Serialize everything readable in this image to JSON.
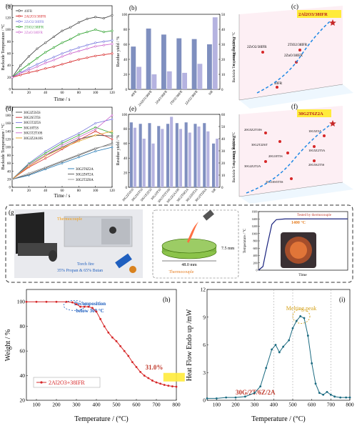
{
  "chart_data": [
    {
      "panel": "(a)",
      "type": "line",
      "xlabel": "Time / s",
      "ylabel": "Backside Temperature / °C",
      "xlim": [
        0,
        120
      ],
      "ylim": [
        0,
        140
      ],
      "xticks": [
        0,
        20,
        40,
        60,
        80,
        100,
        120
      ],
      "yticks": [
        0,
        20,
        40,
        60,
        80,
        100,
        120,
        140
      ],
      "legend_position": "top-left",
      "series": [
        {
          "name": "40FR",
          "color": "#444444",
          "marker": "square",
          "x": [
            0,
            10,
            20,
            30,
            40,
            50,
            60,
            70,
            80,
            90,
            100,
            110,
            120
          ],
          "y": [
            20,
            40,
            55,
            68,
            78,
            88,
            98,
            104,
            112,
            118,
            121,
            119,
            124
          ]
        },
        {
          "name": "2Al2O3/38IFR",
          "color": "#d62728",
          "marker": "circle",
          "x": [
            0,
            10,
            20,
            30,
            40,
            50,
            60,
            70,
            80,
            90,
            100,
            110,
            120
          ],
          "y": [
            20,
            24,
            28,
            31,
            35,
            38,
            42,
            46,
            50,
            53,
            56,
            58,
            60
          ]
        },
        {
          "name": "2ZrO2/38IFR",
          "color": "#7777dd",
          "marker": "triangle",
          "x": [
            0,
            10,
            20,
            30,
            40,
            50,
            60,
            70,
            80,
            90,
            100,
            110,
            120
          ],
          "y": [
            20,
            28,
            35,
            42,
            48,
            54,
            60,
            65,
            70,
            74,
            78,
            80,
            82
          ]
        },
        {
          "name": "2TiO2/38IFR",
          "color": "#2ca02c",
          "marker": "diamond",
          "x": [
            0,
            10,
            20,
            30,
            40,
            50,
            60,
            70,
            80,
            90,
            100,
            110,
            120
          ],
          "y": [
            20,
            32,
            42,
            52,
            62,
            70,
            78,
            84,
            92,
            96,
            100,
            96,
            98
          ]
        },
        {
          "name": "2ZnO/38IFR",
          "color": "#cc66cc",
          "marker": "triangle",
          "x": [
            0,
            10,
            20,
            30,
            40,
            50,
            60,
            70,
            80,
            90,
            100,
            110,
            120
          ],
          "y": [
            20,
            27,
            32,
            38,
            44,
            49,
            55,
            60,
            64,
            68,
            72,
            74,
            76
          ]
        }
      ]
    },
    {
      "panel": "(b)",
      "type": "bar",
      "categories": [
        "40FR",
        "2Al2O3/38IFR",
        "2ZnO/38IFR",
        "2TiO2/38IFR",
        "2ZrO2/38IFR",
        "SiR"
      ],
      "ylabel": "Residue yield / %",
      "y2label": "Burning Time / s",
      "ylim": [
        0,
        100
      ],
      "y2lim": [
        0,
        50
      ],
      "yticks": [
        0,
        20,
        40,
        60,
        80,
        100
      ],
      "y2ticks": [
        0,
        10,
        20,
        30,
        40,
        50
      ],
      "series": [
        {
          "color": "#7f8fbf",
          "values": [
            57,
            81,
            73,
            68,
            67,
            60
          ]
        },
        {
          "color": "#b5b3e0",
          "axis": "right",
          "values": [
            15,
            10,
            12,
            11,
            17,
            48
          ]
        }
      ]
    },
    {
      "panel": "(c)",
      "type": "scatter",
      "ylabel": "Backside Temperature at 120 s / °C",
      "points": [
        {
          "label": "40FR",
          "color": "#d62728",
          "marker": "circle"
        },
        {
          "label": "2ZrO2/38IFR",
          "color": "#d62728",
          "marker": "circle"
        },
        {
          "label": "2TiO2/38IFR",
          "color": "#d62728",
          "marker": "circle"
        },
        {
          "label": "2ZnO/38IFR",
          "color": "#d62728",
          "marker": "circle"
        },
        {
          "label": "2Al2O3/38IFR",
          "color": "#d62728",
          "marker": "star",
          "highlight": true
        }
      ]
    },
    {
      "panel": "(d)",
      "type": "line",
      "xlabel": "Time / s",
      "ylabel": "Backside Temperature / °C",
      "xlim": [
        0,
        120
      ],
      "ylim": [
        0,
        200
      ],
      "xticks": [
        0,
        20,
        40,
        60,
        80,
        100,
        120
      ],
      "yticks": [
        0,
        20,
        40,
        60,
        80,
        100,
        120,
        140,
        160,
        180,
        200
      ],
      "legend_position": "top-left and bottom-right",
      "series": [
        {
          "name": "30G2Z5S5S",
          "color": "#444444",
          "x": [
            0,
            20,
            40,
            60,
            80,
            100,
            120
          ],
          "y": [
            20,
            55,
            80,
            100,
            120,
            130,
            128
          ]
        },
        {
          "name": "30G2S5T5S",
          "color": "#d62728",
          "x": [
            0,
            20,
            40,
            60,
            80,
            100,
            120
          ],
          "y": [
            20,
            50,
            72,
            95,
            118,
            140,
            120
          ]
        },
        {
          "name": "30G5T2Z5S",
          "color": "#7777dd",
          "x": [
            0,
            20,
            40,
            60,
            80,
            100,
            120
          ],
          "y": [
            20,
            60,
            90,
            115,
            135,
            160,
            170
          ]
        },
        {
          "name": "30G10T5S",
          "color": "#2ca02c",
          "x": [
            0,
            20,
            40,
            60,
            80,
            100,
            120
          ],
          "y": [
            20,
            58,
            85,
            110,
            130,
            150,
            135
          ]
        },
        {
          "name": "30G5T2T10S",
          "color": "#cc66cc",
          "x": [
            0,
            20,
            40,
            60,
            80,
            100,
            120
          ],
          "y": [
            20,
            55,
            80,
            105,
            125,
            145,
            180
          ]
        },
        {
          "name": "30G2Z2A10S",
          "color": "#e0a020",
          "x": [
            0,
            20,
            40,
            60,
            80,
            100,
            120
          ],
          "y": [
            20,
            52,
            78,
            98,
            115,
            130,
            140
          ]
        },
        {
          "name": "30G2T6Z2A",
          "color": "#1f77b4",
          "x": [
            0,
            20,
            40,
            60,
            80,
            100,
            120
          ],
          "y": [
            20,
            30,
            45,
            60,
            75,
            90,
            100
          ]
        },
        {
          "name": "30G2Z6T2A",
          "color": "#555555",
          "x": [
            0,
            20,
            40,
            60,
            80,
            100,
            120
          ],
          "y": [
            20,
            32,
            48,
            64,
            80,
            96,
            110
          ]
        },
        {
          "name": "30G2T2Z6A",
          "color": "#999999",
          "x": [
            0,
            20,
            40,
            60,
            80,
            100,
            120
          ],
          "y": [
            20,
            35,
            50,
            66,
            82,
            98,
            106
          ]
        }
      ]
    },
    {
      "panel": "(e)",
      "type": "bar",
      "categories": [
        "30G2Z5S5S",
        "30G2S5T5S",
        "30G5T2Z5S",
        "30G10T5S",
        "30G5T2T10S",
        "30G2Z2A10S",
        "30G2T6Z2A",
        "30G2Z6T2A",
        "30G2T2Z6A",
        "SiR"
      ],
      "ylabel": "Residue yield / %",
      "y2label": "Burning Time / s",
      "ylim": [
        0,
        100
      ],
      "y2lim": [
        0,
        60
      ],
      "yticks": [
        0,
        20,
        40,
        60,
        80,
        100
      ],
      "y2ticks": [
        0,
        10,
        20,
        30,
        40,
        50,
        60
      ],
      "series": [
        {
          "color": "#7f8fbf",
          "values": [
            89,
            87,
            88,
            84,
            87,
            88,
            89,
            87,
            88,
            60
          ]
        },
        {
          "color": "#b5b3e0",
          "axis": "right",
          "values": [
            49,
            40,
            36,
            48,
            58,
            48,
            45,
            50,
            46,
            40
          ]
        }
      ]
    },
    {
      "panel": "(f)",
      "type": "scatter",
      "ylabel": "Backside Temperature at 120 s / °C",
      "points": [
        {
          "label": "20G5Z2T10S",
          "color": "#d62728",
          "marker": "circle"
        },
        {
          "label": "30G2Z2T2A",
          "color": "#d62728",
          "marker": "circle"
        },
        {
          "label": "20G10T5S",
          "color": "#d62728",
          "marker": "circle"
        },
        {
          "label": "10G5Z5A",
          "color": "#d62728",
          "marker": "circle"
        },
        {
          "label": "10G5Z2T5A",
          "color": "#d62728",
          "marker": "circle"
        },
        {
          "label": "30G2T2Z6T",
          "color": "#d62728",
          "marker": "circle"
        },
        {
          "label": "20G5S2T5S",
          "color": "#d62728",
          "marker": "circle"
        },
        {
          "label": "20G10S5T5S",
          "color": "#d62728",
          "marker": "circle"
        },
        {
          "label": "30G2T6Z2A",
          "color": "#d62728",
          "marker": "star",
          "highlight": true
        }
      ]
    },
    {
      "panel": "(g)",
      "type": "line",
      "ylabel": "Temperature / °C",
      "xlabel": "Time",
      "ylim": [
        0,
        1600
      ],
      "yticks": [
        0,
        200,
        400,
        600,
        800,
        1000,
        1200,
        1400,
        1600
      ],
      "series": [
        {
          "color": "#1a237e",
          "t": [
            0,
            0.05,
            0.1,
            0.15,
            0.2,
            0.3,
            0.5,
            0.7,
            1.0
          ],
          "y": [
            0,
            100,
            700,
            1250,
            1380,
            1400,
            1400,
            1400,
            1400
          ]
        }
      ],
      "annotations": [
        "Tested by thermocouple",
        "1400 °C"
      ]
    },
    {
      "panel": "(h)",
      "type": "line",
      "xlabel": "Temperature / (°C)",
      "ylabel": "Weight / %",
      "xlim": [
        50,
        800
      ],
      "ylim": [
        20,
        110
      ],
      "xticks": [
        100,
        200,
        300,
        400,
        500,
        600,
        700,
        800
      ],
      "yticks": [
        20,
        40,
        60,
        80,
        100
      ],
      "series": [
        {
          "name": "2Al2O3+38IFR",
          "color": "#d62728",
          "x": [
            50,
            100,
            150,
            200,
            250,
            280,
            300,
            320,
            340,
            360,
            380,
            400,
            420,
            440,
            460,
            480,
            500,
            520,
            540,
            560,
            580,
            600,
            620,
            640,
            660,
            680,
            700,
            720,
            740,
            760,
            780,
            800
          ],
          "y": [
            100,
            100,
            100,
            100,
            100,
            99.5,
            98,
            96,
            96,
            96,
            95,
            92,
            86,
            80,
            75,
            71,
            68,
            64,
            60,
            56,
            51,
            47,
            43,
            40,
            38,
            36,
            34.5,
            33.5,
            32.5,
            31.8,
            31.3,
            31.0
          ]
        }
      ],
      "annotations": [
        "Decomposition below 300 °C",
        "31.0%"
      ]
    },
    {
      "panel": "(i)",
      "type": "line",
      "xlabel": "Temperature / (°C)",
      "ylabel": "Heat Flow Endo up /mW",
      "xlim": [
        50,
        800
      ],
      "ylim": [
        0,
        12
      ],
      "xticks": [
        100,
        200,
        300,
        400,
        500,
        600,
        700,
        800
      ],
      "yticks": [
        0,
        3,
        6,
        9,
        12
      ],
      "series": [
        {
          "name": "30G/2T/6Z/2A",
          "color": "#1a6a80",
          "x": [
            50,
            100,
            150,
            200,
            250,
            300,
            330,
            360,
            390,
            410,
            430,
            450,
            480,
            500,
            520,
            540,
            560,
            580,
            600,
            620,
            640,
            660,
            680,
            700,
            720,
            750,
            780,
            800
          ],
          "y": [
            0.2,
            0.2,
            0.3,
            0.3,
            0.4,
            0.8,
            1.5,
            3.5,
            5.5,
            6.0,
            5.2,
            5.8,
            6.5,
            7.8,
            8.6,
            9.1,
            8.9,
            7.0,
            4.0,
            1.8,
            0.8,
            0.6,
            0.9,
            0.6,
            0.4,
            0.3,
            0.3,
            0.3
          ]
        }
      ],
      "annotations": [
        "Melting peak",
        "30G/2T/6Z/2A"
      ]
    }
  ],
  "photo": {
    "thermocouple_label": "Thermocouple",
    "torch_label": "Torch fire",
    "torch_gas": "35% Propan & 65% Butan",
    "thermocouple_label2": "Thermocouple",
    "disk_diameter": "48.0 mm",
    "disk_thickness": "7.5 mm"
  }
}
